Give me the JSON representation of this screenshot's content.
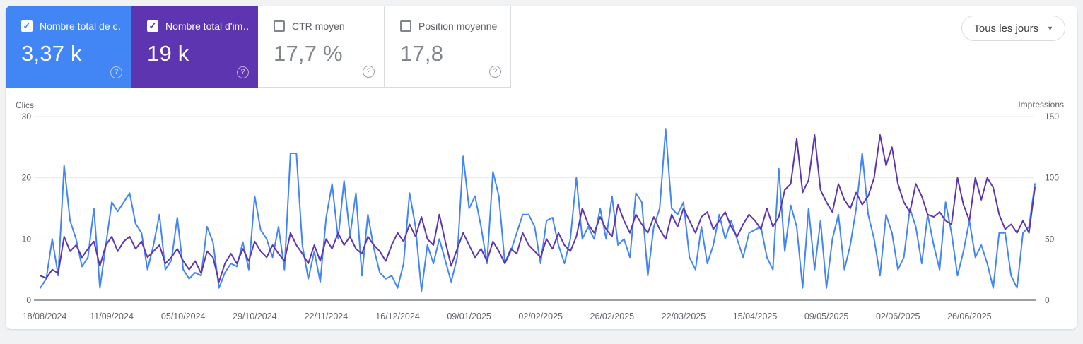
{
  "cards": [
    {
      "label": "Nombre total de c…",
      "value": "3,37 k",
      "checked": true,
      "color": "#4285f4"
    },
    {
      "label": "Nombre total d'im…",
      "value": "19 k",
      "checked": true,
      "color": "#5e35b1"
    },
    {
      "label": "CTR moyen",
      "value": "17,7 %",
      "checked": false,
      "color": null
    },
    {
      "label": "Position moyenne",
      "value": "17,8",
      "checked": false,
      "color": null
    }
  ],
  "filter": {
    "label": "Tous les jours",
    "caret": "▼"
  },
  "help_icon_glyph": "?",
  "checkbox_glyph": "✓",
  "chart_data": {
    "type": "line",
    "x_tick_labels": [
      "18/08/2024",
      "11/09/2024",
      "05/10/2024",
      "29/10/2024",
      "22/11/2024",
      "16/12/2024",
      "09/01/2025",
      "02/02/2025",
      "26/02/2025",
      "22/03/2025",
      "15/04/2025",
      "09/05/2025",
      "02/06/2025",
      "26/06/2025"
    ],
    "x_tick_interval_days": 24,
    "sample_interval_days": 2,
    "total_days": 334,
    "grid": true,
    "axes": {
      "left": {
        "label": "Clics",
        "ticks": [
          0,
          10,
          20,
          30
        ],
        "max": 30
      },
      "right": {
        "label": "Impressions",
        "ticks": [
          0,
          50,
          100,
          150
        ],
        "max": 150
      }
    },
    "series": [
      {
        "name": "Clics",
        "axis": "left",
        "color": "#4285f4",
        "values": [
          2,
          3.5,
          10,
          4,
          22,
          13,
          10,
          5.5,
          7,
          15,
          2,
          9,
          16,
          14.5,
          16,
          17.5,
          12.5,
          11,
          5,
          9,
          14,
          5,
          6.5,
          13.5,
          5,
          3.5,
          4.5,
          4,
          12,
          9.5,
          2,
          4.5,
          6,
          5.5,
          9.5,
          5,
          17,
          11.5,
          10,
          7,
          12,
          5,
          24,
          24,
          9,
          3.5,
          8,
          3,
          13.5,
          19,
          10,
          19.5,
          10.5,
          17.5,
          4,
          14,
          8.5,
          4.5,
          3.5,
          4,
          2,
          6,
          17.5,
          12,
          1.5,
          9,
          6,
          10,
          6.5,
          3,
          7,
          23.5,
          15,
          17,
          12,
          6,
          21,
          17,
          6,
          8,
          11,
          14,
          14,
          12,
          6,
          13,
          13.5,
          9,
          6,
          10,
          20,
          10,
          12,
          10,
          15,
          10,
          17,
          9,
          10,
          7,
          17.5,
          16,
          4,
          12,
          15,
          28,
          15,
          14,
          16,
          7,
          5,
          12,
          6,
          9,
          14,
          10,
          13,
          10,
          7,
          11,
          11.5,
          12,
          7,
          5,
          21.5,
          8,
          15.5,
          12,
          2,
          15,
          5,
          13,
          2,
          10,
          14,
          5,
          9,
          15,
          24,
          14,
          10,
          4,
          14,
          11,
          5,
          7,
          15,
          12,
          6,
          14,
          9,
          5,
          16,
          11,
          4,
          8,
          13,
          7,
          9,
          6,
          2,
          11,
          11,
          4,
          2,
          11,
          12,
          19
        ]
      },
      {
        "name": "Impressions",
        "axis": "right",
        "color": "#5e35b1",
        "values": [
          20,
          18,
          25,
          22,
          52,
          40,
          45,
          35,
          42,
          48,
          28,
          45,
          52,
          40,
          48,
          52,
          42,
          48,
          35,
          40,
          45,
          30,
          35,
          42,
          32,
          25,
          32,
          22,
          40,
          35,
          15,
          30,
          38,
          30,
          42,
          32,
          48,
          40,
          35,
          45,
          38,
          32,
          55,
          45,
          38,
          30,
          45,
          32,
          50,
          42,
          55,
          45,
          52,
          42,
          38,
          52,
          45,
          40,
          32,
          45,
          55,
          48,
          62,
          52,
          68,
          50,
          45,
          70,
          48,
          28,
          42,
          55,
          45,
          35,
          42,
          32,
          48,
          40,
          30,
          42,
          38,
          55,
          45,
          40,
          35,
          50,
          42,
          55,
          45,
          40,
          52,
          75,
          62,
          55,
          68,
          58,
          52,
          78,
          65,
          55,
          70,
          62,
          55,
          68,
          58,
          50,
          70,
          60,
          75,
          65,
          55,
          68,
          72,
          58,
          65,
          72,
          60,
          52,
          62,
          70,
          65,
          58,
          75,
          60,
          68,
          90,
          95,
          132,
          88,
          98,
          135,
          90,
          80,
          72,
          95,
          82,
          75,
          88,
          78,
          85,
          100,
          135,
          110,
          125,
          95,
          80,
          72,
          95,
          85,
          70,
          68,
          72,
          65,
          62,
          100,
          78,
          65,
          100,
          82,
          100,
          92,
          70,
          58,
          62,
          55,
          65,
          55,
          92
        ]
      }
    ]
  }
}
